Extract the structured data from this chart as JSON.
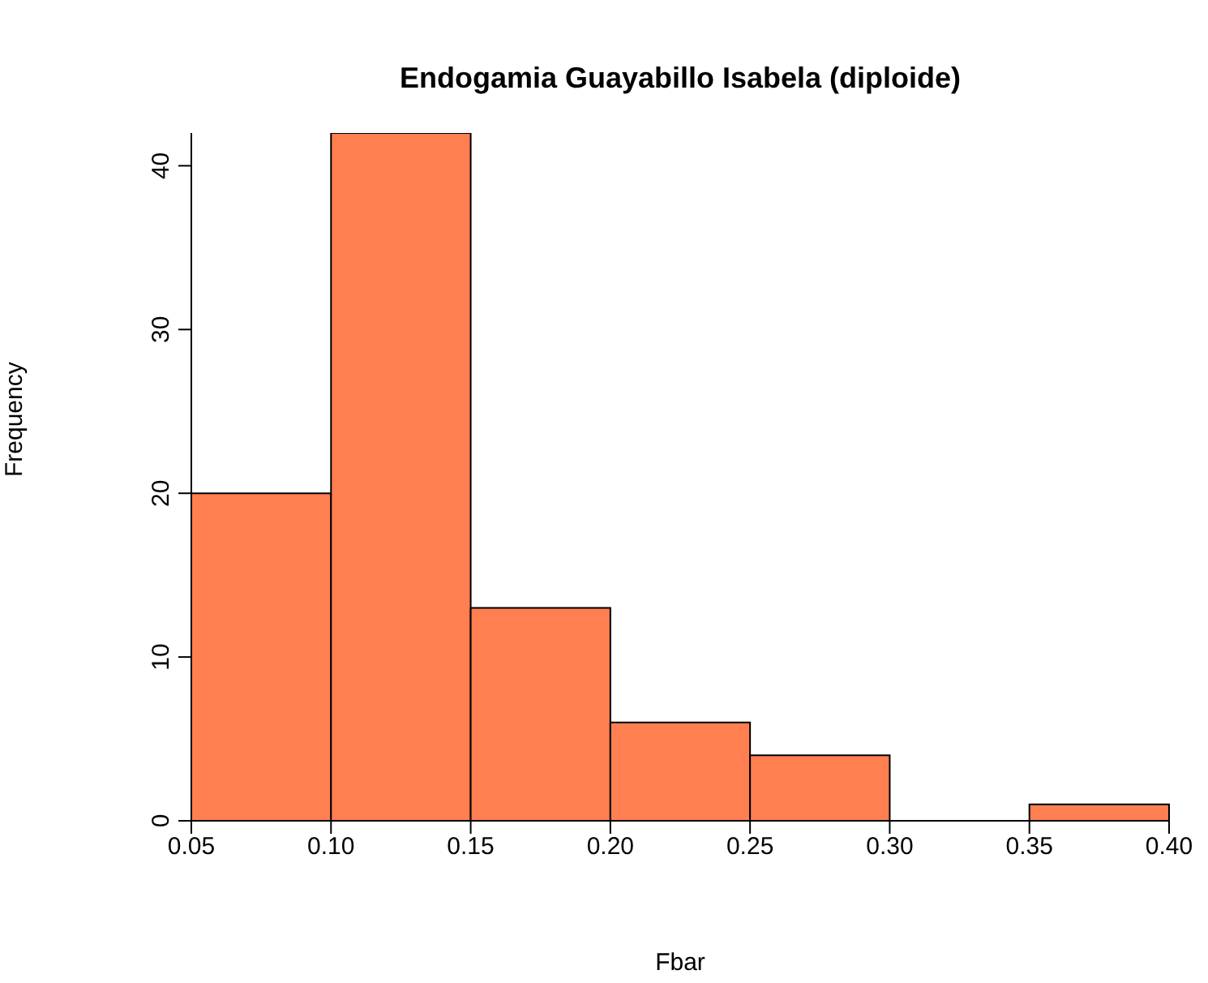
{
  "chart_data": {
    "type": "histogram",
    "title": "Endogamia Guayabillo Isabela (diploide)",
    "xlabel": "Fbar",
    "ylabel": "Frequency",
    "bins": [
      0.05,
      0.1,
      0.15,
      0.2,
      0.25,
      0.3,
      0.35,
      0.4
    ],
    "values": [
      20,
      42,
      13,
      6,
      4,
      0,
      1
    ],
    "color": "#ff7f50",
    "xlim": [
      0.05,
      0.4
    ],
    "xticks": [
      {
        "value": 0.05,
        "label": "0.05"
      },
      {
        "value": 0.1,
        "label": "0.10"
      },
      {
        "value": 0.15,
        "label": "0.15"
      },
      {
        "value": 0.2,
        "label": "0.20"
      },
      {
        "value": 0.25,
        "label": "0.25"
      },
      {
        "value": 0.3,
        "label": "0.30"
      },
      {
        "value": 0.35,
        "label": "0.35"
      },
      {
        "value": 0.4,
        "label": "0.40"
      }
    ],
    "ylim": [
      0,
      42
    ],
    "yticks": [
      0,
      10,
      20,
      30,
      40
    ]
  }
}
